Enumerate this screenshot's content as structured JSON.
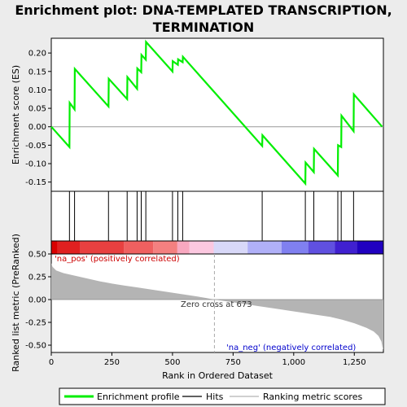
{
  "chart_data": {
    "type": "line",
    "title_line1": "Enrichment plot: DNA-TEMPLATED TRANSCRIPTION,",
    "title_line2": "TERMINATION",
    "top_panel": {
      "ylabel": "Enrichment score (ES)",
      "ylim": [
        -0.175,
        0.24
      ],
      "yticks": [
        -0.15,
        -0.1,
        -0.05,
        0.0,
        0.05,
        0.1,
        0.15,
        0.2
      ],
      "ytick_labels": [
        "-0.15",
        "-0.10",
        "-0.05",
        "0.00",
        "0.05",
        "0.10",
        "0.15",
        "0.20"
      ],
      "series": {
        "name": "Enrichment profile",
        "color": "#00ee00",
        "x": [
          0,
          75,
          76,
          96,
          97,
          236,
          237,
          313,
          314,
          354,
          355,
          371,
          372,
          390,
          391,
          500,
          501,
          522,
          523,
          542,
          543,
          870,
          871,
          1048,
          1049,
          1083,
          1084,
          1182,
          1183,
          1196,
          1197,
          1247,
          1248,
          1365
        ],
        "y": [
          0.0,
          -0.055,
          0.065,
          0.047,
          0.157,
          0.055,
          0.13,
          0.075,
          0.135,
          0.103,
          0.158,
          0.148,
          0.195,
          0.182,
          0.23,
          0.15,
          0.178,
          0.168,
          0.183,
          0.175,
          0.19,
          -0.052,
          -0.023,
          -0.154,
          -0.097,
          -0.123,
          -0.06,
          -0.132,
          -0.05,
          -0.055,
          0.03,
          -0.012,
          0.088,
          0.0
        ]
      }
    },
    "hits": {
      "color": "#000000",
      "ranks": [
        75,
        96,
        236,
        313,
        354,
        371,
        390,
        500,
        522,
        542,
        870,
        1048,
        1083,
        1182,
        1196,
        1247
      ]
    },
    "color_bar": {
      "colors": [
        "#d90000",
        "#e02020",
        "#e84040",
        "#ef6060",
        "#f48080",
        "#f8a8c0",
        "#fcc8e0",
        "#d8d8f8",
        "#b0b0f8",
        "#8080f0",
        "#6050e0",
        "#4020d0",
        "#2000c0"
      ],
      "stops": [
        0,
        25,
        120,
        300,
        420,
        520,
        570,
        670,
        810,
        950,
        1060,
        1170,
        1260,
        1370
      ]
    },
    "bottom_panel": {
      "ylabel": "Ranked list metric (PreRanked)",
      "xlabel": "Rank in Ordered Dataset",
      "ylim": [
        -0.58,
        0.5
      ],
      "yticks": [
        -0.5,
        -0.25,
        0.0,
        0.25,
        0.5
      ],
      "ytick_labels": [
        "-0.50",
        "-0.25",
        "0.00",
        "0.25",
        "0.50"
      ],
      "xlim": [
        0,
        1370
      ],
      "xticks": [
        0,
        250,
        500,
        750,
        1000,
        1250
      ],
      "xtick_labels": [
        "0",
        "250",
        "500",
        "750",
        "1,000",
        "1,250"
      ],
      "metric": {
        "name": "Ranking metric scores",
        "color": "#b4b4b4",
        "x": [
          0,
          5,
          20,
          50,
          100,
          150,
          200,
          250,
          300,
          350,
          400,
          450,
          500,
          550,
          600,
          650,
          673,
          750,
          850,
          950,
          1050,
          1150,
          1200,
          1250,
          1300,
          1330,
          1350,
          1362,
          1366,
          1370
        ],
        "y": [
          0.4,
          0.36,
          0.32,
          0.29,
          0.26,
          0.23,
          0.2,
          0.175,
          0.155,
          0.135,
          0.115,
          0.095,
          0.075,
          0.055,
          0.035,
          0.012,
          0.0,
          -0.03,
          -0.07,
          -0.11,
          -0.15,
          -0.19,
          -0.22,
          -0.26,
          -0.31,
          -0.35,
          -0.4,
          -0.46,
          -0.52,
          -0.55
        ]
      },
      "zero_cross_label": "Zero cross at 673",
      "zero_cross_rank": 673,
      "pos_label": "'na_pos' (positively correlated)",
      "neg_label": "'na_neg' (negatively correlated)",
      "pos_color": "#cc0000",
      "neg_color": "#0000cc"
    },
    "legend": {
      "placement": "bottom",
      "items": [
        {
          "label": "Enrichment profile",
          "color": "#00ee00"
        },
        {
          "label": "Hits",
          "color": "#000000"
        },
        {
          "label": "Ranking metric scores",
          "color": "#b4b4b4"
        }
      ]
    }
  }
}
